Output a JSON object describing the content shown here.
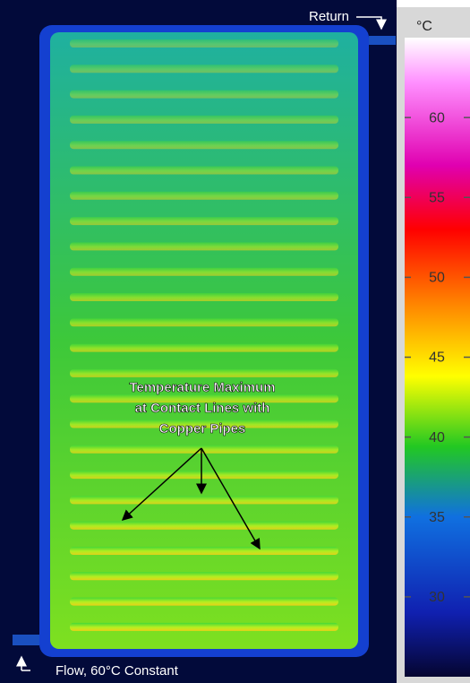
{
  "annotations": {
    "return": "Return",
    "flow": "Flow, 60°C Constant",
    "callout": [
      "Temperature Maximum",
      "at Contact Lines with",
      "Copper Pipes"
    ]
  },
  "colorbar": {
    "unit": "°C",
    "lim": [
      25,
      65
    ],
    "ticks": [
      60,
      55,
      50,
      45,
      40,
      35,
      30
    ]
  }
}
